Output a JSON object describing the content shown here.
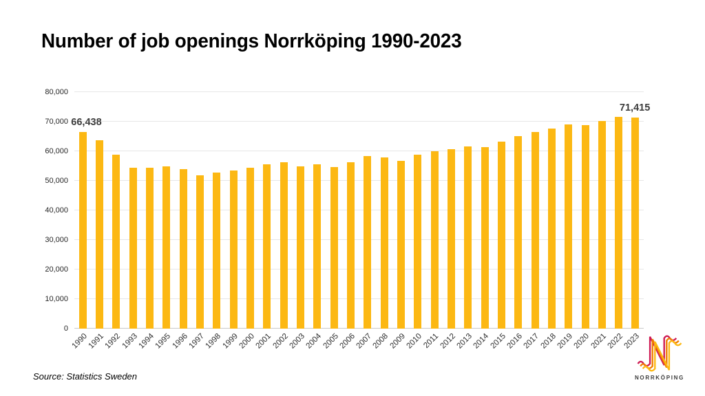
{
  "page": {
    "title": "Number of job openings Norrköping 1990-2023",
    "source": "Source: Statistics Sweden"
  },
  "logo": {
    "text": "NORRKÖPING",
    "colors": {
      "crimson": "#CE1A53",
      "orange": "#F07D00",
      "gold": "#FDB913"
    }
  },
  "chart_data": {
    "type": "bar",
    "title": "Number of job openings Norrköping 1990-2023",
    "xlabel": "",
    "ylabel": "",
    "ylim": [
      0,
      80000
    ],
    "ytick_interval": 10000,
    "ytick_values": [
      0,
      10000,
      20000,
      30000,
      40000,
      50000,
      60000,
      70000,
      80000
    ],
    "ytick_labels": [
      "0",
      "10,000",
      "20,000",
      "30,000",
      "40,000",
      "50,000",
      "60,000",
      "70,000",
      "80,000"
    ],
    "grid": true,
    "legend": "none",
    "bar_color": "#FCB813",
    "categories": [
      "1990",
      "1991",
      "1992",
      "1993",
      "1994",
      "1995",
      "1996",
      "1997",
      "1998",
      "1999",
      "2000",
      "2001",
      "2002",
      "2003",
      "2004",
      "2005",
      "2006",
      "2007",
      "2008",
      "2009",
      "2010",
      "2011",
      "2012",
      "2013",
      "2014",
      "2015",
      "2016",
      "2017",
      "2018",
      "2019",
      "2020",
      "2021",
      "2022",
      "2023"
    ],
    "values": [
      66438,
      63700,
      58800,
      54400,
      54500,
      55000,
      54000,
      51900,
      52900,
      53400,
      54400,
      55600,
      56300,
      54900,
      55600,
      54700,
      56300,
      58300,
      57900,
      56700,
      58800,
      60000,
      60700,
      61600,
      61500,
      63300,
      65200,
      66600,
      67700,
      69100,
      68800,
      70200,
      71600,
      71415
    ],
    "annotations": [
      {
        "category": "1990",
        "text": "66,438"
      },
      {
        "category": "2023",
        "text": "71,415"
      }
    ],
    "source": "Source: Statistics Sweden"
  }
}
